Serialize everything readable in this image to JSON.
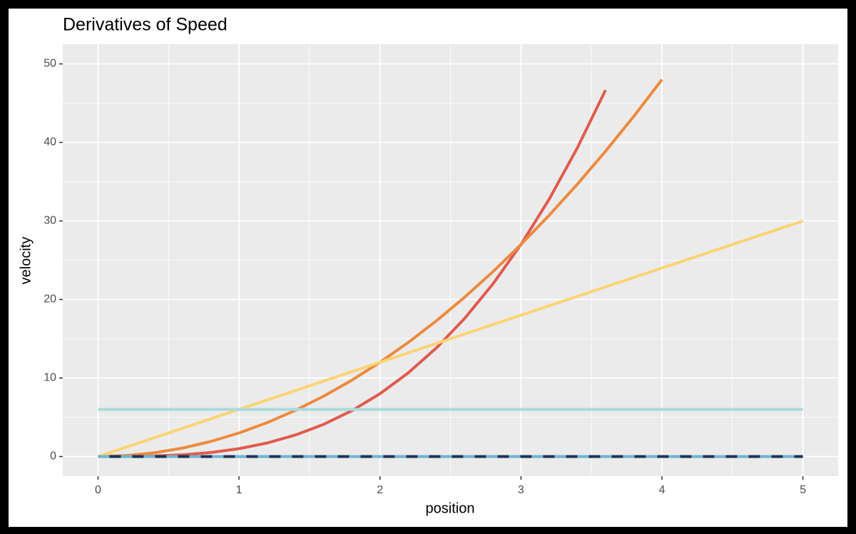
{
  "chart_data": {
    "type": "line",
    "title": "Derivatives of Speed",
    "x_label": "position",
    "y_label": "velocity",
    "x": [
      0,
      0.2,
      0.4,
      0.6,
      0.8,
      1,
      1.2,
      1.4,
      1.6,
      1.8,
      2,
      2.2,
      2.4,
      2.6,
      2.8,
      3,
      3.2,
      3.4,
      3.6,
      3.8,
      4,
      4.2,
      4.4,
      4.6,
      4.8,
      5
    ],
    "series": [
      {
        "color": "#e05a4f",
        "linetype": "solid",
        "values": [
          0,
          0.008,
          0.064,
          0.216,
          0.512,
          1,
          1.728,
          2.744,
          4.096,
          5.832,
          8,
          10.648,
          13.824,
          17.576,
          21.952,
          27,
          32.768,
          39.304,
          46.656,
          null,
          null,
          null,
          null,
          null,
          null,
          null
        ]
      },
      {
        "color": "#ec8a3f",
        "linetype": "solid",
        "values": [
          0,
          0.12,
          0.48,
          1.08,
          1.92,
          3,
          4.32,
          5.88,
          7.68,
          9.72,
          12,
          14.52,
          17.28,
          20.28,
          23.52,
          27,
          30.72,
          34.68,
          38.88,
          43.32,
          48,
          null,
          null,
          null,
          null,
          null
        ]
      },
      {
        "color": "#fcd374",
        "linetype": "solid",
        "values": [
          0,
          1.2,
          2.4,
          3.6,
          4.8,
          6,
          7.2,
          8.4,
          9.6,
          10.8,
          12,
          13.2,
          14.4,
          15.6,
          16.8,
          18,
          19.2,
          20.4,
          21.6,
          22.8,
          24,
          25.2,
          26.4,
          27.6,
          28.8,
          30
        ]
      },
      {
        "color": "#a8dadc",
        "linetype": "solid",
        "values": [
          6,
          6,
          6,
          6,
          6,
          6,
          6,
          6,
          6,
          6,
          6,
          6,
          6,
          6,
          6,
          6,
          6,
          6,
          6,
          6,
          6,
          6,
          6,
          6,
          6,
          6
        ]
      },
      {
        "color": "#6fb4d2",
        "linetype": "dashed",
        "values": [
          0,
          0,
          0,
          0,
          0,
          0,
          0,
          0,
          0,
          0,
          0,
          0,
          0,
          0,
          0,
          0,
          0,
          0,
          0,
          0,
          0,
          0,
          0,
          0,
          0,
          0
        ]
      },
      {
        "color": "#1d3557",
        "linetype": "dashed",
        "values": [
          0,
          0,
          0,
          0,
          0,
          0,
          0,
          0,
          0,
          0,
          0,
          0,
          0,
          0,
          0,
          0,
          0,
          0,
          0,
          0,
          0,
          0,
          0,
          0,
          0,
          0
        ]
      }
    ],
    "xlim": [
      -0.25,
      5.25
    ],
    "ylim": [
      -2.5,
      52.5
    ],
    "xticks": [
      0,
      1,
      2,
      3,
      4,
      5
    ],
    "yticks": [
      0,
      10,
      20,
      30,
      40,
      50
    ],
    "grid": true,
    "minor_grid": true
  }
}
